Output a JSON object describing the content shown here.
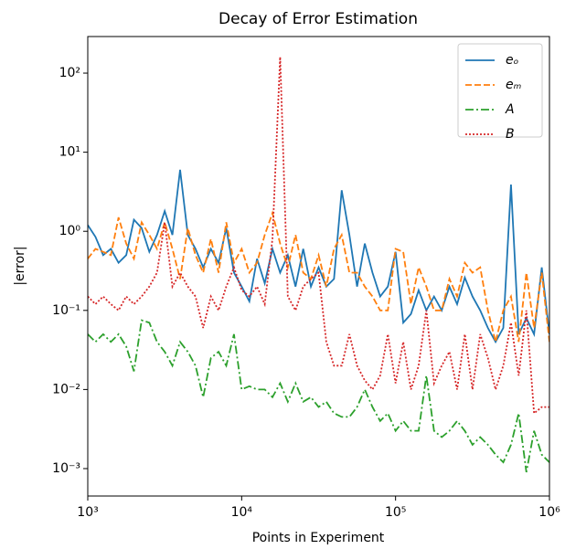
{
  "chart_data": {
    "type": "line",
    "title": "Decay of Error Estimation",
    "xlabel": "Points in Experiment",
    "ylabel": "|error|",
    "xscale": "log",
    "yscale": "log",
    "legend": "upper right",
    "xlim": [
      1000,
      1000000
    ],
    "ylim": [
      0.00045,
      290
    ],
    "xticks": [
      {
        "value": 1000,
        "label": "10³"
      },
      {
        "value": 10000,
        "label": "10⁴"
      },
      {
        "value": 100000,
        "label": "10⁵"
      },
      {
        "value": 1000000,
        "label": "10⁶"
      }
    ],
    "yticks": [
      {
        "value": 0.001,
        "label": "10⁻³"
      },
      {
        "value": 0.01,
        "label": "10⁻²"
      },
      {
        "value": 0.1,
        "label": "10⁻¹"
      },
      {
        "value": 1,
        "label": "10⁰"
      },
      {
        "value": 10,
        "label": "10¹"
      },
      {
        "value": 100,
        "label": "10²"
      }
    ],
    "x": [
      1000,
      1122,
      1259,
      1413,
      1585,
      1778,
      1995,
      2239,
      2512,
      2818,
      3162,
      3548,
      3981,
      4467,
      5012,
      5623,
      6310,
      7079,
      7943,
      8913,
      10000,
      11220,
      12589,
      14125,
      15849,
      17783,
      19953,
      22387,
      25119,
      28184,
      31623,
      35481,
      39811,
      44668,
      50119,
      56234,
      63096,
      70795,
      79433,
      89125,
      100000,
      112202,
      125893,
      141254,
      158489,
      177828,
      199526,
      223872,
      251189,
      281838,
      316228,
      354813,
      398107,
      446684,
      501187,
      562341,
      630957,
      707946,
      794328,
      891251,
      1000000
    ],
    "series": [
      {
        "name": "eₒ",
        "color": "#1f77b4",
        "linestyle": "solid",
        "values": [
          1.2,
          0.85,
          0.5,
          0.6,
          0.4,
          0.5,
          1.4,
          1.1,
          0.55,
          0.9,
          1.8,
          0.9,
          6,
          0.9,
          0.6,
          0.35,
          0.6,
          0.4,
          1.1,
          0.3,
          0.2,
          0.13,
          0.45,
          0.22,
          0.6,
          0.3,
          0.5,
          0.2,
          0.6,
          0.2,
          0.35,
          0.2,
          0.25,
          3.3,
          0.9,
          0.2,
          0.7,
          0.3,
          0.15,
          0.2,
          0.55,
          0.07,
          0.09,
          0.18,
          0.1,
          0.15,
          0.1,
          0.2,
          0.12,
          0.26,
          0.15,
          0.1,
          0.06,
          0.04,
          0.06,
          3.9,
          0.05,
          0.08,
          0.05,
          0.35,
          0.05
        ]
      },
      {
        "name": "eₘ",
        "color": "#ff7f0e",
        "linestyle": "dashed",
        "values": [
          0.45,
          0.6,
          0.55,
          0.5,
          1.5,
          0.7,
          0.45,
          1.3,
          0.9,
          0.6,
          1.3,
          0.6,
          0.25,
          1.1,
          0.5,
          0.3,
          0.8,
          0.3,
          1.3,
          0.4,
          0.6,
          0.3,
          0.4,
          0.9,
          1.7,
          0.7,
          0.35,
          0.9,
          0.3,
          0.25,
          0.5,
          0.2,
          0.6,
          0.9,
          0.3,
          0.3,
          0.2,
          0.15,
          0.1,
          0.1,
          0.6,
          0.55,
          0.12,
          0.35,
          0.2,
          0.1,
          0.1,
          0.25,
          0.15,
          0.4,
          0.3,
          0.35,
          0.1,
          0.04,
          0.1,
          0.15,
          0.04,
          0.3,
          0.06,
          0.3,
          0.04
        ]
      },
      {
        "name": "A",
        "color": "#2ca02c",
        "linestyle": "dashdot",
        "values": [
          0.05,
          0.04,
          0.05,
          0.04,
          0.05,
          0.035,
          0.017,
          0.075,
          0.07,
          0.04,
          0.03,
          0.02,
          0.04,
          0.03,
          0.02,
          0.008,
          0.025,
          0.03,
          0.02,
          0.05,
          0.01,
          0.011,
          0.01,
          0.01,
          0.008,
          0.012,
          0.007,
          0.012,
          0.007,
          0.008,
          0.006,
          0.007,
          0.005,
          0.0045,
          0.0045,
          0.006,
          0.01,
          0.006,
          0.004,
          0.005,
          0.003,
          0.004,
          0.003,
          0.003,
          0.015,
          0.003,
          0.0025,
          0.003,
          0.004,
          0.003,
          0.002,
          0.0025,
          0.002,
          0.0015,
          0.0012,
          0.002,
          0.005,
          0.0009,
          0.003,
          0.0015,
          0.0012
        ]
      },
      {
        "name": "B",
        "color": "#d62728",
        "linestyle": "dotted",
        "values": [
          0.15,
          0.12,
          0.15,
          0.12,
          0.1,
          0.15,
          0.12,
          0.15,
          0.2,
          0.3,
          1.3,
          0.2,
          0.3,
          0.2,
          0.15,
          0.06,
          0.15,
          0.1,
          0.2,
          0.35,
          0.18,
          0.15,
          0.2,
          0.12,
          0.8,
          160,
          0.15,
          0.1,
          0.2,
          0.25,
          0.3,
          0.04,
          0.02,
          0.02,
          0.05,
          0.02,
          0.013,
          0.01,
          0.015,
          0.05,
          0.012,
          0.04,
          0.01,
          0.02,
          0.1,
          0.012,
          0.02,
          0.03,
          0.01,
          0.05,
          0.01,
          0.05,
          0.025,
          0.01,
          0.02,
          0.07,
          0.015,
          0.1,
          0.005,
          0.006,
          0.006
        ]
      }
    ]
  }
}
